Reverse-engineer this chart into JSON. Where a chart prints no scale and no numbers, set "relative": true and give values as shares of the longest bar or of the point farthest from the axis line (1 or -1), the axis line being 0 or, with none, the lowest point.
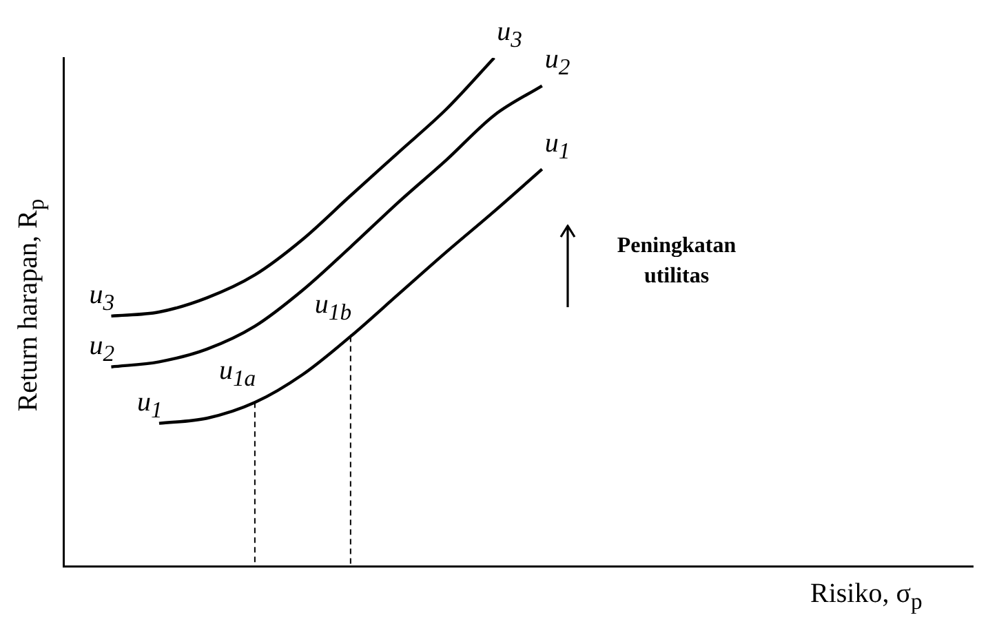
{
  "chart_data": {
    "type": "line",
    "relative": true,
    "xlabel": "Risiko, σ$_{p}$",
    "ylabel": "Return harapan, R$_{p}$",
    "categories": [
      null,
      null,
      null,
      null,
      null,
      null,
      null,
      null,
      null,
      null,
      null,
      null,
      null,
      null,
      null,
      null,
      null,
      null,
      null,
      null
    ],
    "series": [
      {
        "name": "u$_{3}$",
        "color": "#000000",
        "values": [
          null,
          0.492,
          0.5,
          0.528,
          0.573,
          0.643,
          0.729,
          0.814,
          0.899,
          1.0,
          null,
          null,
          null,
          null,
          null,
          null,
          null,
          null,
          null,
          null
        ]
      },
      {
        "name": "u$_{2}$",
        "color": "#000000",
        "values": [
          null,
          0.392,
          0.402,
          0.427,
          0.472,
          0.543,
          0.628,
          0.716,
          0.799,
          0.887,
          0.945,
          null,
          null,
          null,
          null,
          null,
          null,
          null,
          null,
          null
        ]
      },
      {
        "name": "u$_{1}$",
        "color": "#000000",
        "values": [
          null,
          null,
          0.281,
          0.291,
          0.322,
          0.377,
          0.452,
          0.535,
          0.618,
          0.698,
          0.781,
          null,
          null,
          null,
          null,
          null,
          null,
          null,
          null,
          null
        ]
      }
    ],
    "annotations": [
      "u$_{1a}$",
      "u$_{1b}$",
      "Peningkatan utilitas"
    ],
    "grid": false,
    "legend": false,
    "marker": "none",
    "line_style": "solid"
  }
}
